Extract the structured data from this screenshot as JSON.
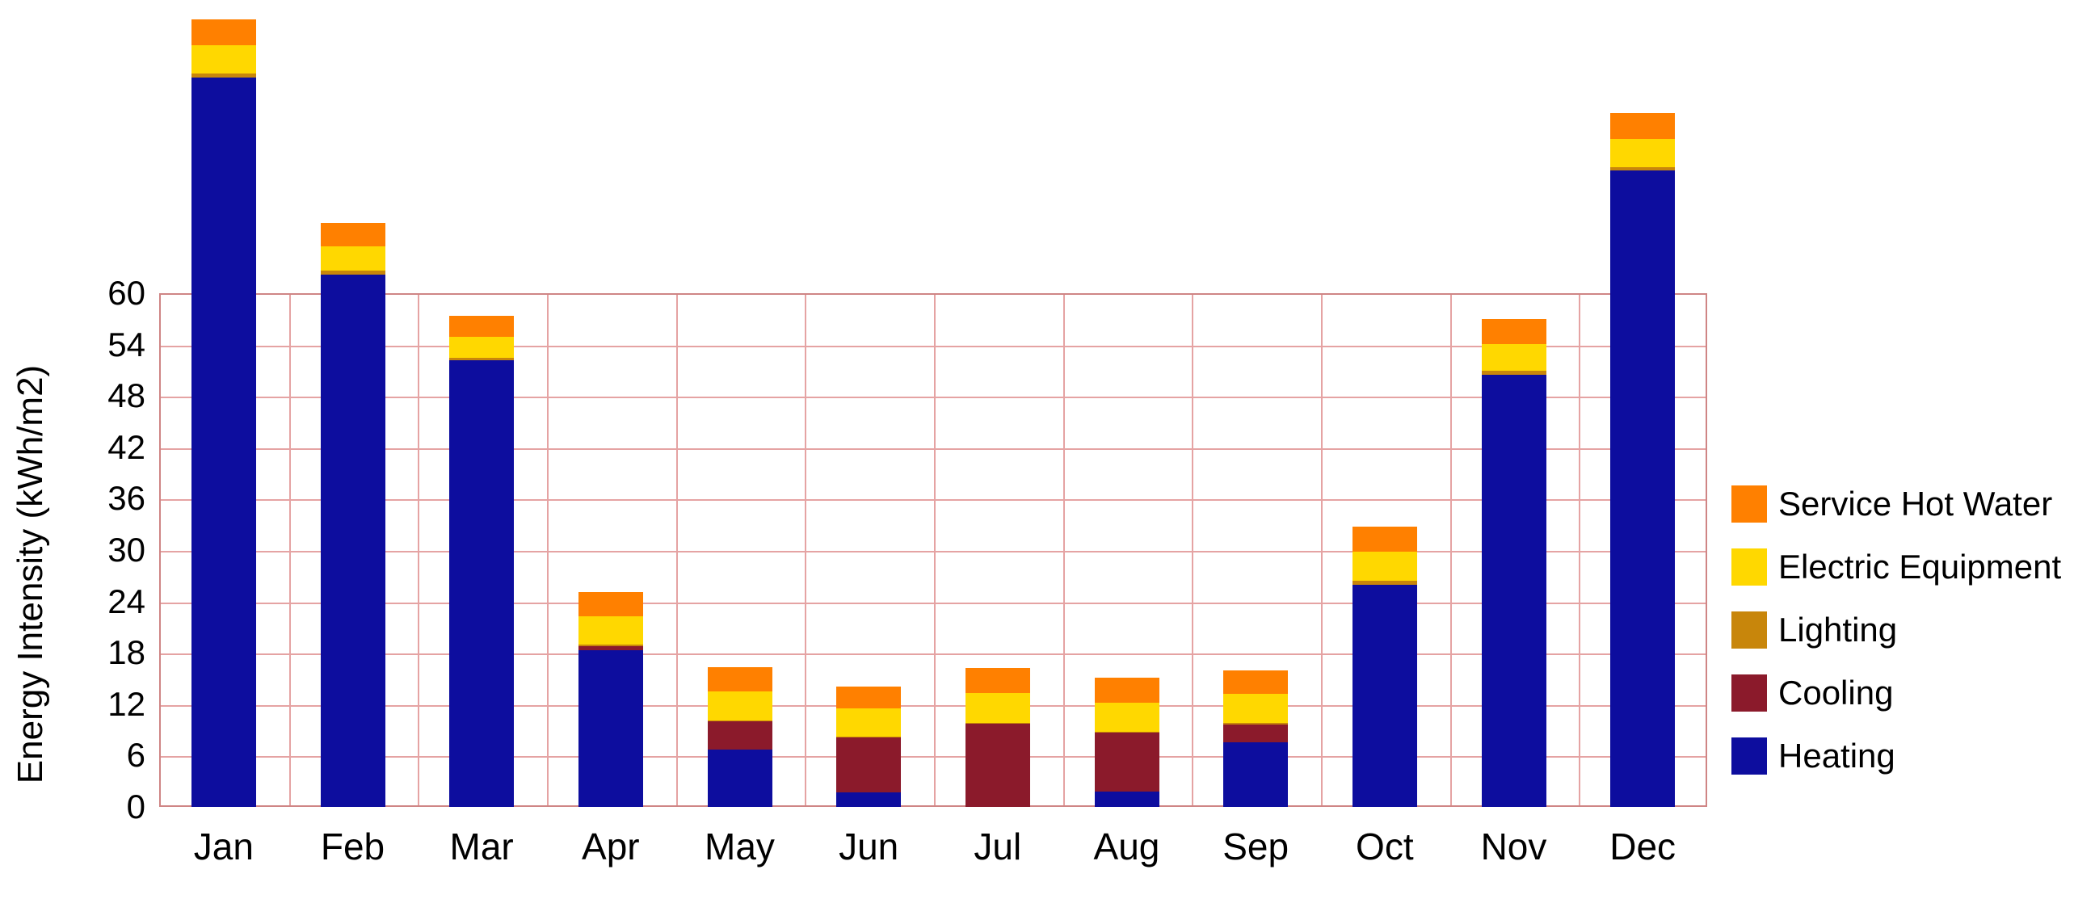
{
  "chart_data": {
    "type": "bar",
    "stacked": true,
    "title": "",
    "xlabel": "",
    "ylabel": "Energy Intensity (kWh/m2)",
    "ylim": [
      0,
      60
    ],
    "y_ticks": [
      0,
      6,
      12,
      18,
      24,
      30,
      36,
      42,
      48,
      54,
      60
    ],
    "grid": {
      "horizontal_step": 6,
      "vertical": "per-category-boundary",
      "color": "#e5a3a3",
      "border_color": "#cf8585"
    },
    "legend_position": "right",
    "categories": [
      "Jan",
      "Feb",
      "Mar",
      "Apr",
      "May",
      "Jun",
      "Jul",
      "Aug",
      "Sep",
      "Oct",
      "Nov",
      "Dec"
    ],
    "series": [
      {
        "name": "Heating",
        "color": "#0d0d9e",
        "values": [
          85.2,
          62.2,
          52.2,
          18.3,
          6.7,
          1.7,
          0.0,
          1.8,
          7.5,
          25.9,
          50.5,
          74.3
        ]
      },
      {
        "name": "Cooling",
        "color": "#8b1a2b",
        "values": [
          0.0,
          0.0,
          0.0,
          0.5,
          3.3,
          6.4,
          9.7,
          6.9,
          2.1,
          0.0,
          0.0,
          0.0
        ]
      },
      {
        "name": "Lighting",
        "color": "#c8860b",
        "values": [
          0.5,
          0.4,
          0.3,
          0.2,
          0.1,
          0.1,
          0.1,
          0.1,
          0.2,
          0.5,
          0.4,
          0.4
        ]
      },
      {
        "name": "Electric Equipment",
        "color": "#ffd800",
        "values": [
          3.3,
          2.9,
          2.4,
          3.3,
          3.4,
          3.3,
          3.5,
          3.4,
          3.4,
          3.4,
          3.2,
          3.3
        ]
      },
      {
        "name": "Service Hot Water",
        "color": "#ff8000",
        "values": [
          3.0,
          2.7,
          2.5,
          2.8,
          2.8,
          2.6,
          2.9,
          2.9,
          2.7,
          2.9,
          2.9,
          3.0
        ]
      }
    ],
    "totals": [
      92.0,
      68.2,
      57.4,
      25.1,
      16.3,
      14.1,
      16.2,
      15.1,
      15.9,
      32.7,
      57.0,
      81.0
    ],
    "legend_order_top_to_bottom": [
      "Service Hot Water",
      "Electric Equipment",
      "Lighting",
      "Cooling",
      "Heating"
    ]
  }
}
